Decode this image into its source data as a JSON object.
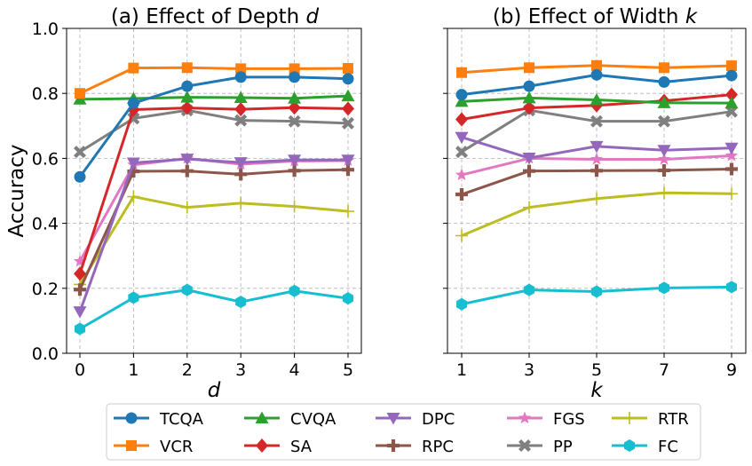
{
  "chart_data": [
    {
      "type": "line",
      "title": "(a) Effect of Depth ",
      "title_var": "d",
      "xlabel": "d",
      "ylabel": "Accuracy",
      "x": [
        0,
        1,
        2,
        3,
        4,
        5
      ],
      "xticks": [
        "0",
        "1",
        "2",
        "3",
        "4",
        "5"
      ],
      "yticks": [
        "0.0",
        "0.2",
        "0.4",
        "0.6",
        "0.8",
        "1.0"
      ],
      "ylim": [
        0,
        1
      ],
      "grid": true,
      "series": [
        {
          "name": "TCQA",
          "values": [
            0.543,
            0.77,
            0.822,
            0.85,
            0.85,
            0.845
          ]
        },
        {
          "name": "VCR",
          "values": [
            0.8,
            0.878,
            0.879,
            0.876,
            0.876,
            0.877
          ]
        },
        {
          "name": "CVQA",
          "values": [
            0.782,
            0.784,
            0.788,
            0.787,
            0.785,
            0.792
          ]
        },
        {
          "name": "SA",
          "values": [
            0.245,
            0.75,
            0.755,
            0.751,
            0.756,
            0.753
          ]
        },
        {
          "name": "DPC",
          "values": [
            0.128,
            0.586,
            0.598,
            0.587,
            0.595,
            0.595
          ]
        },
        {
          "name": "RPC",
          "values": [
            0.196,
            0.56,
            0.561,
            0.551,
            0.562,
            0.565
          ]
        },
        {
          "name": "FGS",
          "values": [
            0.283,
            0.58,
            0.6,
            0.582,
            0.592,
            0.593
          ]
        },
        {
          "name": "PP",
          "values": [
            0.62,
            0.723,
            0.748,
            0.717,
            0.714,
            0.708
          ]
        },
        {
          "name": "RTR",
          "values": [
            0.212,
            0.482,
            0.449,
            0.462,
            0.452,
            0.437
          ]
        },
        {
          "name": "FC",
          "values": [
            0.075,
            0.171,
            0.195,
            0.158,
            0.192,
            0.169
          ]
        }
      ]
    },
    {
      "type": "line",
      "title": "(b) Effect of Width ",
      "title_var": "k",
      "xlabel": "k",
      "ylabel": "",
      "x": [
        1,
        3,
        5,
        7,
        9
      ],
      "xticks": [
        "1",
        "3",
        "5",
        "7",
        "9"
      ],
      "ylim": [
        0,
        1
      ],
      "grid": true,
      "series": [
        {
          "name": "TCQA",
          "values": [
            0.796,
            0.822,
            0.857,
            0.835,
            0.855
          ]
        },
        {
          "name": "VCR",
          "values": [
            0.864,
            0.879,
            0.886,
            0.879,
            0.885
          ]
        },
        {
          "name": "CVQA",
          "values": [
            0.775,
            0.786,
            0.78,
            0.771,
            0.77
          ]
        },
        {
          "name": "SA",
          "values": [
            0.72,
            0.755,
            0.763,
            0.777,
            0.796
          ]
        },
        {
          "name": "DPC",
          "values": [
            0.665,
            0.601,
            0.637,
            0.625,
            0.632
          ]
        },
        {
          "name": "RPC",
          "values": [
            0.489,
            0.561,
            0.562,
            0.563,
            0.567
          ]
        },
        {
          "name": "FGS",
          "values": [
            0.549,
            0.6,
            0.597,
            0.597,
            0.608
          ]
        },
        {
          "name": "PP",
          "values": [
            0.62,
            0.748,
            0.714,
            0.714,
            0.744
          ]
        },
        {
          "name": "RTR",
          "values": [
            0.362,
            0.449,
            0.476,
            0.494,
            0.491
          ]
        },
        {
          "name": "FC",
          "values": [
            0.151,
            0.195,
            0.19,
            0.201,
            0.204
          ]
        }
      ]
    }
  ],
  "legend": {
    "placement": "bottom",
    "entries": [
      {
        "name": "TCQA",
        "color": "#1f77b4",
        "marker": "circle"
      },
      {
        "name": "CVQA",
        "color": "#2ca02c",
        "marker": "triangle-up"
      },
      {
        "name": "DPC",
        "color": "#9467bd",
        "marker": "triangle-down"
      },
      {
        "name": "FGS",
        "color": "#e377c2",
        "marker": "star"
      },
      {
        "name": "RTR",
        "color": "#bcbd22",
        "marker": "plus"
      },
      {
        "name": "VCR",
        "color": "#ff7f0e",
        "marker": "square"
      },
      {
        "name": "SA",
        "color": "#d62728",
        "marker": "diamond"
      },
      {
        "name": "RPC",
        "color": "#8c564b",
        "marker": "plus-bold"
      },
      {
        "name": "PP",
        "color": "#7f7f7f",
        "marker": "x-bold"
      },
      {
        "name": "FC",
        "color": "#17becf",
        "marker": "hexagon"
      }
    ]
  }
}
